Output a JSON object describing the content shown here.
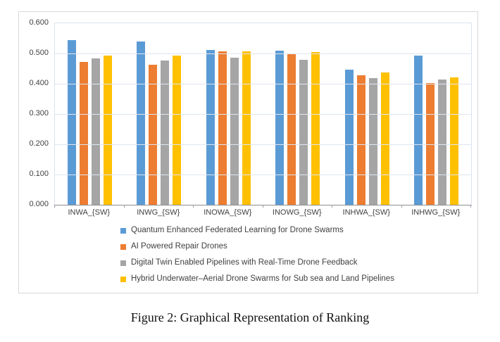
{
  "caption": "Figure 2: Graphical Representation of Ranking",
  "chart_data": {
    "type": "bar",
    "title": "",
    "xlabel": "",
    "ylabel": "",
    "categories": [
      "INWA_{SW}",
      "INWG_{SW}",
      "INOWA_{SW}",
      "INOWG_{SW}",
      "INHWA_{SW}",
      "INHWG_{SW}"
    ],
    "series": [
      {
        "name": "Quantum Enhanced Federated Learning for Drone Swarms",
        "color": "#5B9BD5",
        "values": [
          0.545,
          0.54,
          0.512,
          0.51,
          0.446,
          0.493
        ]
      },
      {
        "name": "AI Powered Repair Drones",
        "color": "#ED7D31",
        "values": [
          0.472,
          0.464,
          0.507,
          0.497,
          0.427,
          0.402
        ]
      },
      {
        "name": "Digital Twin Enabled Pipelines with Real-Time Drone Feedback",
        "color": "#A5A5A5",
        "values": [
          0.484,
          0.478,
          0.487,
          0.479,
          0.419,
          0.415
        ]
      },
      {
        "name": "Hybrid Underwater–Aerial Drone Swarms for Sub sea and Land Pipelines",
        "color": "#FFC000",
        "values": [
          0.493,
          0.492,
          0.506,
          0.504,
          0.437,
          0.421
        ]
      }
    ],
    "ylim": [
      0,
      0.6
    ],
    "y_tick_step": 0.1,
    "y_tick_labels": [
      "0.000",
      "0.100",
      "0.200",
      "0.300",
      "0.400",
      "0.500",
      "0.600"
    ],
    "grid": true,
    "legend_position": "bottom-left-stacked"
  },
  "style_colors": {
    "gridline": "#dfe5f0",
    "plot_border": "#dce3ef",
    "axis_line": "#8f8f8f",
    "chart_border": "#d8d8d8",
    "tick_text": "#3f3f3f"
  }
}
